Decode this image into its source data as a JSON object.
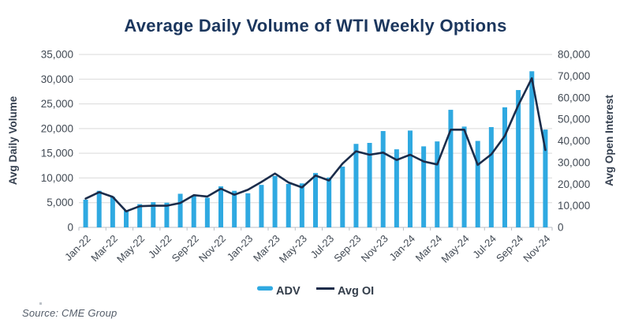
{
  "title": "Average Daily Volume of WTI Weekly Options",
  "source": "Source: CME Group",
  "colors": {
    "bar": "#2FA9E1",
    "line": "#1B2C4A",
    "title": "#1B365D",
    "axis_text": "#424A54",
    "axis_title_text": "#333E4E",
    "legend_text": "#333D4A",
    "grid": "#D9D9D9",
    "axis_line": "#B9BEC4",
    "source_text": "#555E6A"
  },
  "legend": {
    "adv_label": "ADV",
    "oi_label": "Avg OI"
  },
  "chart_data": {
    "type": "bar+line combo",
    "title": "Average Daily Volume of WTI Weekly Options",
    "grid": true,
    "legend_position": "bottom",
    "categories": [
      "Jan-22",
      "Feb-22",
      "Mar-22",
      "Apr-22",
      "May-22",
      "Jun-22",
      "Jul-22",
      "Aug-22",
      "Sep-22",
      "Oct-22",
      "Nov-22",
      "Dec-22",
      "Jan-23",
      "Feb-23",
      "Mar-23",
      "Apr-23",
      "May-23",
      "Jun-23",
      "Jul-23",
      "Aug-23",
      "Sep-23",
      "Oct-23",
      "Nov-23",
      "Dec-23",
      "Jan-24",
      "Feb-24",
      "Mar-24",
      "Apr-24",
      "May-24",
      "Jun-24",
      "Jul-24",
      "Aug-24",
      "Sep-24",
      "Oct-24",
      "Nov-24"
    ],
    "x_tick_labels": [
      "Jan-22",
      "Mar-22",
      "May-22",
      "Jul-22",
      "Sep-22",
      "Nov-22",
      "Jan-23",
      "Mar-23",
      "May-23",
      "Jul-23",
      "Sep-23",
      "Nov-23",
      "Jan-24",
      "Mar-24",
      "May-24",
      "Jul-24",
      "Sep-24",
      "Nov-24"
    ],
    "series": [
      {
        "name": "ADV",
        "type": "bar",
        "axis": "left",
        "values": [
          5600,
          7400,
          6200,
          3500,
          4700,
          5100,
          5000,
          6800,
          6400,
          6000,
          8300,
          7400,
          6900,
          8600,
          10400,
          8800,
          8900,
          11000,
          10100,
          12300,
          16900,
          17100,
          19500,
          15800,
          19600,
          16400,
          17400,
          23800,
          20400,
          17500,
          20300,
          24300,
          27800,
          31600,
          19800
        ]
      },
      {
        "name": "Avg OI",
        "type": "line",
        "axis": "right",
        "values": [
          13300,
          16300,
          14100,
          7400,
          9800,
          10000,
          10000,
          11300,
          14900,
          14300,
          17900,
          15100,
          17400,
          21000,
          24900,
          20800,
          18500,
          24000,
          21700,
          29500,
          35200,
          33600,
          34600,
          31200,
          33600,
          30500,
          29100,
          45200,
          45200,
          28900,
          33800,
          42300,
          56500,
          69000,
          35800
        ]
      }
    ],
    "left_axis": {
      "label": "Avg Daily Volume",
      "min": 0,
      "max": 35000,
      "step": 5000
    },
    "right_axis": {
      "label": "Avg Open Interest",
      "min": 0,
      "max": 80000,
      "step": 10000
    }
  }
}
